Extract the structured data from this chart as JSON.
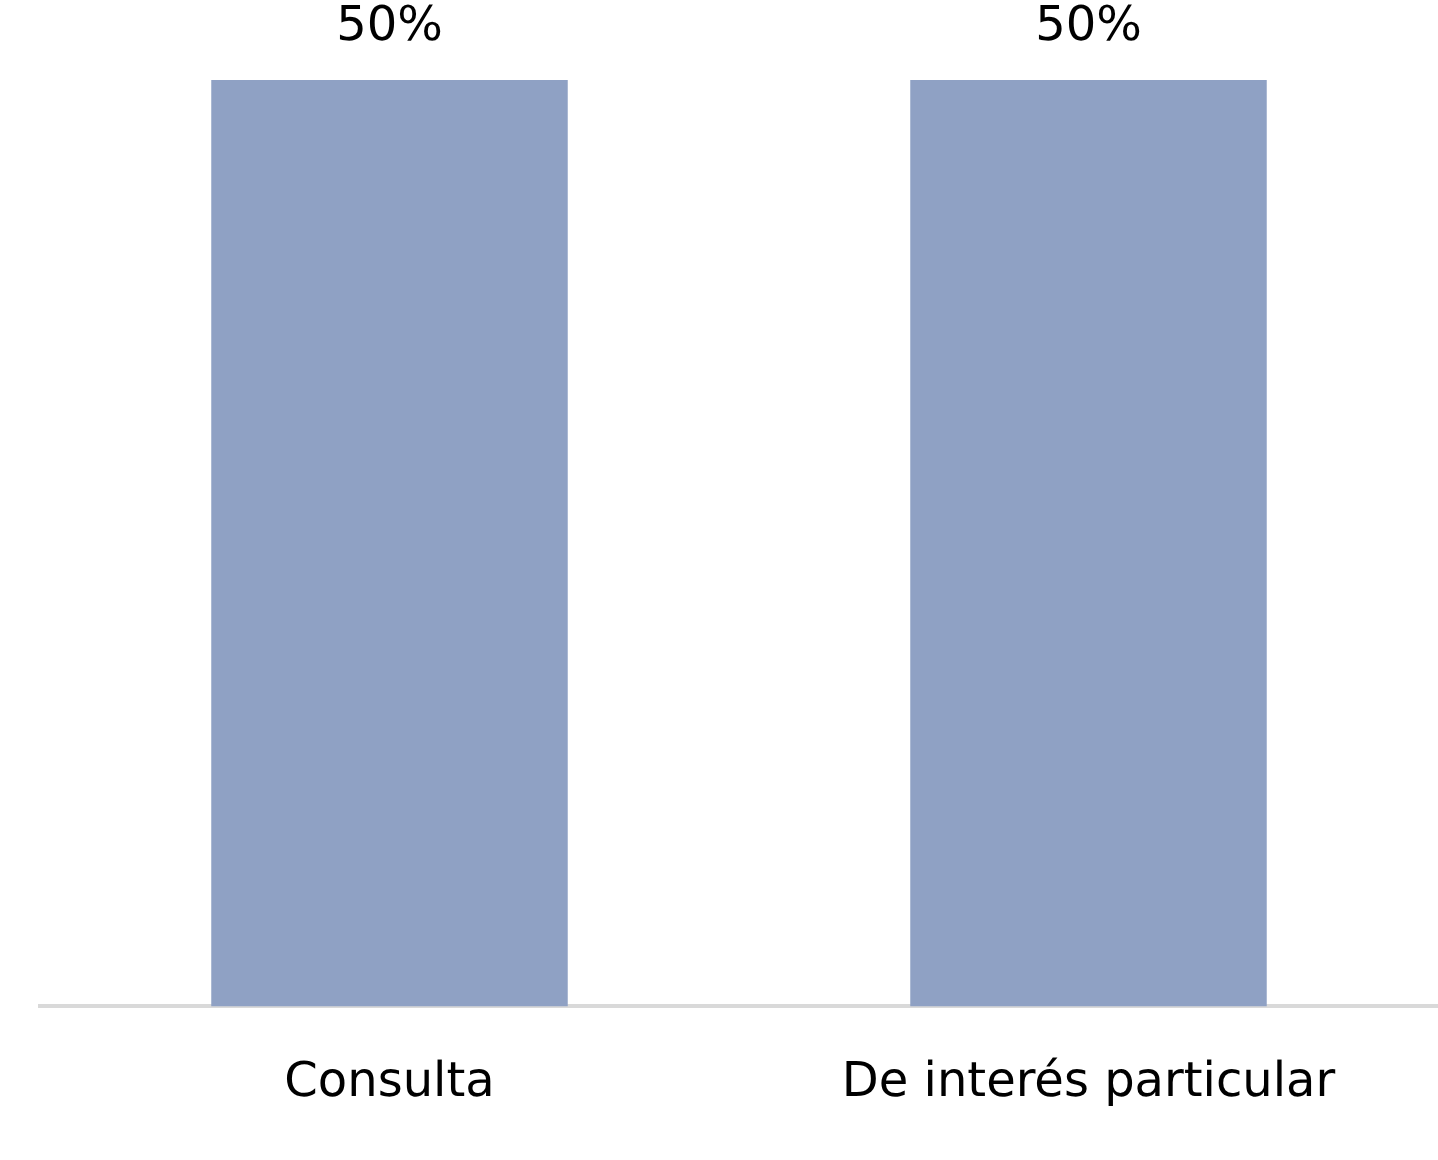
{
  "chart_data": {
    "type": "bar",
    "categories": [
      "Consulta",
      "De interés particular"
    ],
    "values": [
      50,
      50
    ],
    "value_labels": [
      "50%",
      "50%"
    ],
    "color": "#8fa1c4",
    "grid": false,
    "legend": false
  }
}
